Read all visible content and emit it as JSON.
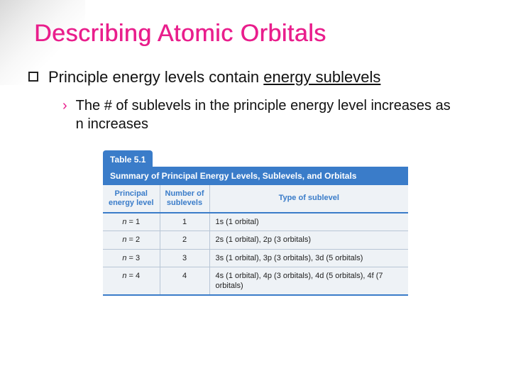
{
  "title": "Describing Atomic Orbitals",
  "bullet": {
    "prefix": "Principle energy levels contain ",
    "underlined": "energy sublevels"
  },
  "sub_bullet": "The # of sublevels in the principle energy level increases as n increases",
  "table": {
    "label": "Table 5.1",
    "caption": "Summary of Principal Energy Levels, Sublevels, and Orbitals",
    "headers": {
      "col0": "Principal energy level",
      "col1": "Number of sublevels",
      "col2": "Type of sublevel"
    },
    "rows": [
      {
        "level_var": "n",
        "level_eq": " = 1",
        "num": "1",
        "type": "1s (1 orbital)"
      },
      {
        "level_var": "n",
        "level_eq": " = 2",
        "num": "2",
        "type": "2s (1 orbital), 2p (3 orbitals)"
      },
      {
        "level_var": "n",
        "level_eq": " = 3",
        "num": "3",
        "type": "3s (1 orbital), 3p (3 orbitals), 3d (5 orbitals)"
      },
      {
        "level_var": "n",
        "level_eq": " = 4",
        "num": "4",
        "type": "4s (1 orbital), 4p (3 orbitals), 4d (5 orbitals), 4f (7 orbitals)"
      }
    ]
  },
  "colors": {
    "accent": "#e91e8c",
    "table_header_bg": "#3a7cc9",
    "table_bg": "#eef2f6"
  }
}
